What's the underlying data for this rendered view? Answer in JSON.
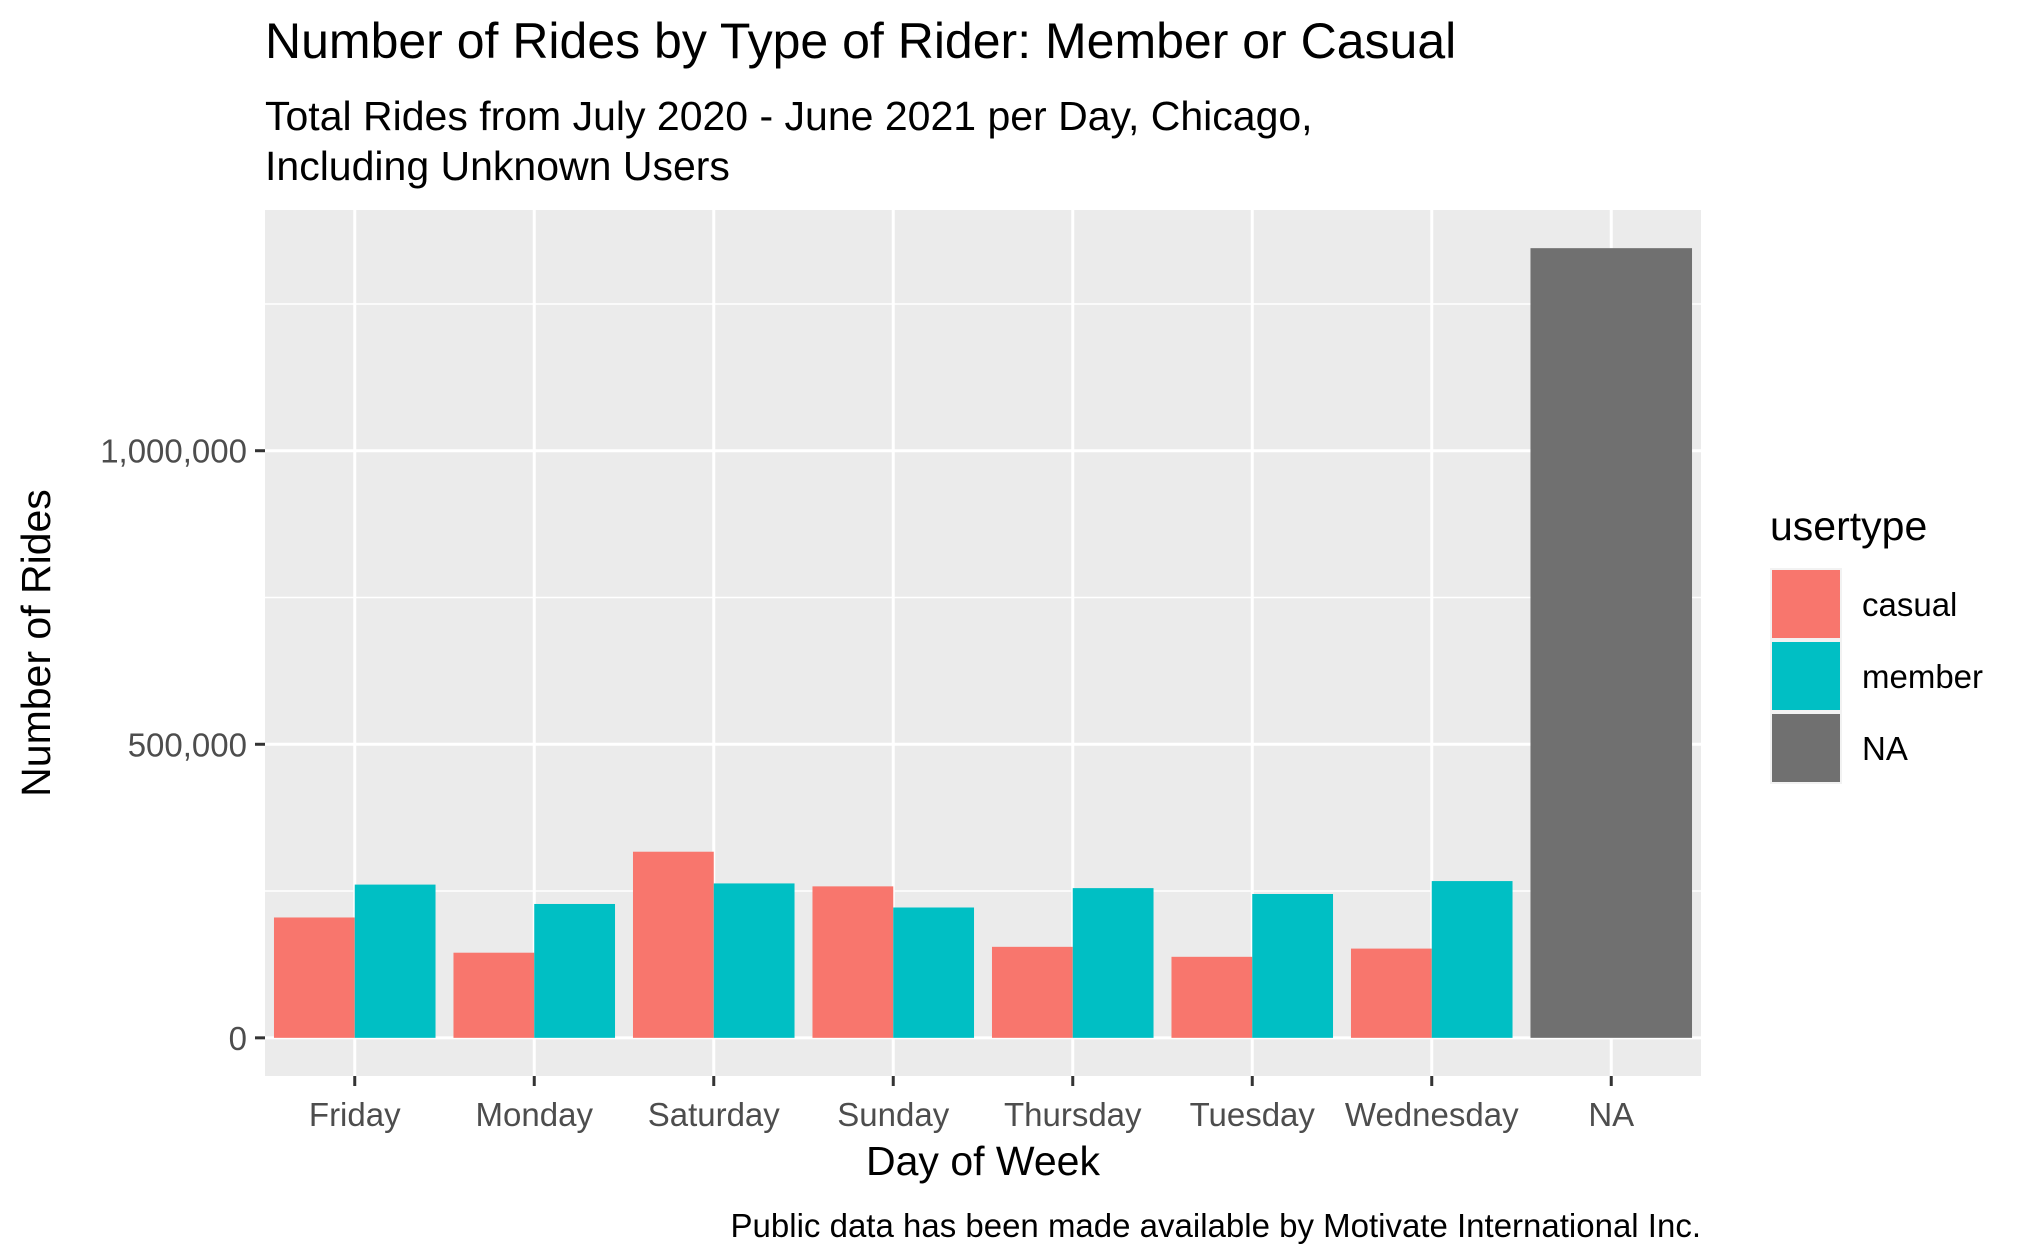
{
  "chart_data": {
    "type": "bar",
    "title": "Number of Rides by Type of Rider: Member or Casual",
    "subtitle_lines": [
      "Total Rides from July 2020 - June 2021 per Day, Chicago,",
      "Including Unknown Users"
    ],
    "xlabel": "Day of Week",
    "ylabel": "Number of Rides",
    "caption": "Public data has been made available by Motivate International Inc.",
    "categories": [
      "Friday",
      "Monday",
      "Saturday",
      "Sunday",
      "Thursday",
      "Tuesday",
      "Wednesday",
      "NA"
    ],
    "y_ticks": [
      {
        "value": 0,
        "label": "0"
      },
      {
        "value": 500000,
        "label": "500,000"
      },
      {
        "value": 1000000,
        "label": "1,000,000"
      }
    ],
    "ylim": [
      -65000,
      1410000
    ],
    "grid": true,
    "legend": {
      "title": "usertype",
      "placement": "right"
    },
    "series": [
      {
        "name": "casual",
        "color": "#F8766D",
        "values": [
          205000,
          145000,
          317000,
          258000,
          155000,
          138000,
          152000,
          null
        ]
      },
      {
        "name": "member",
        "color": "#00BFC4",
        "values": [
          261000,
          228000,
          263000,
          222000,
          255000,
          245000,
          267000,
          null
        ]
      },
      {
        "name": "NA",
        "color": "#707070",
        "values": [
          null,
          null,
          null,
          null,
          null,
          null,
          null,
          1345000
        ]
      }
    ],
    "panel_background": "#EBEBEB",
    "grid_color": "#FFFFFF"
  }
}
